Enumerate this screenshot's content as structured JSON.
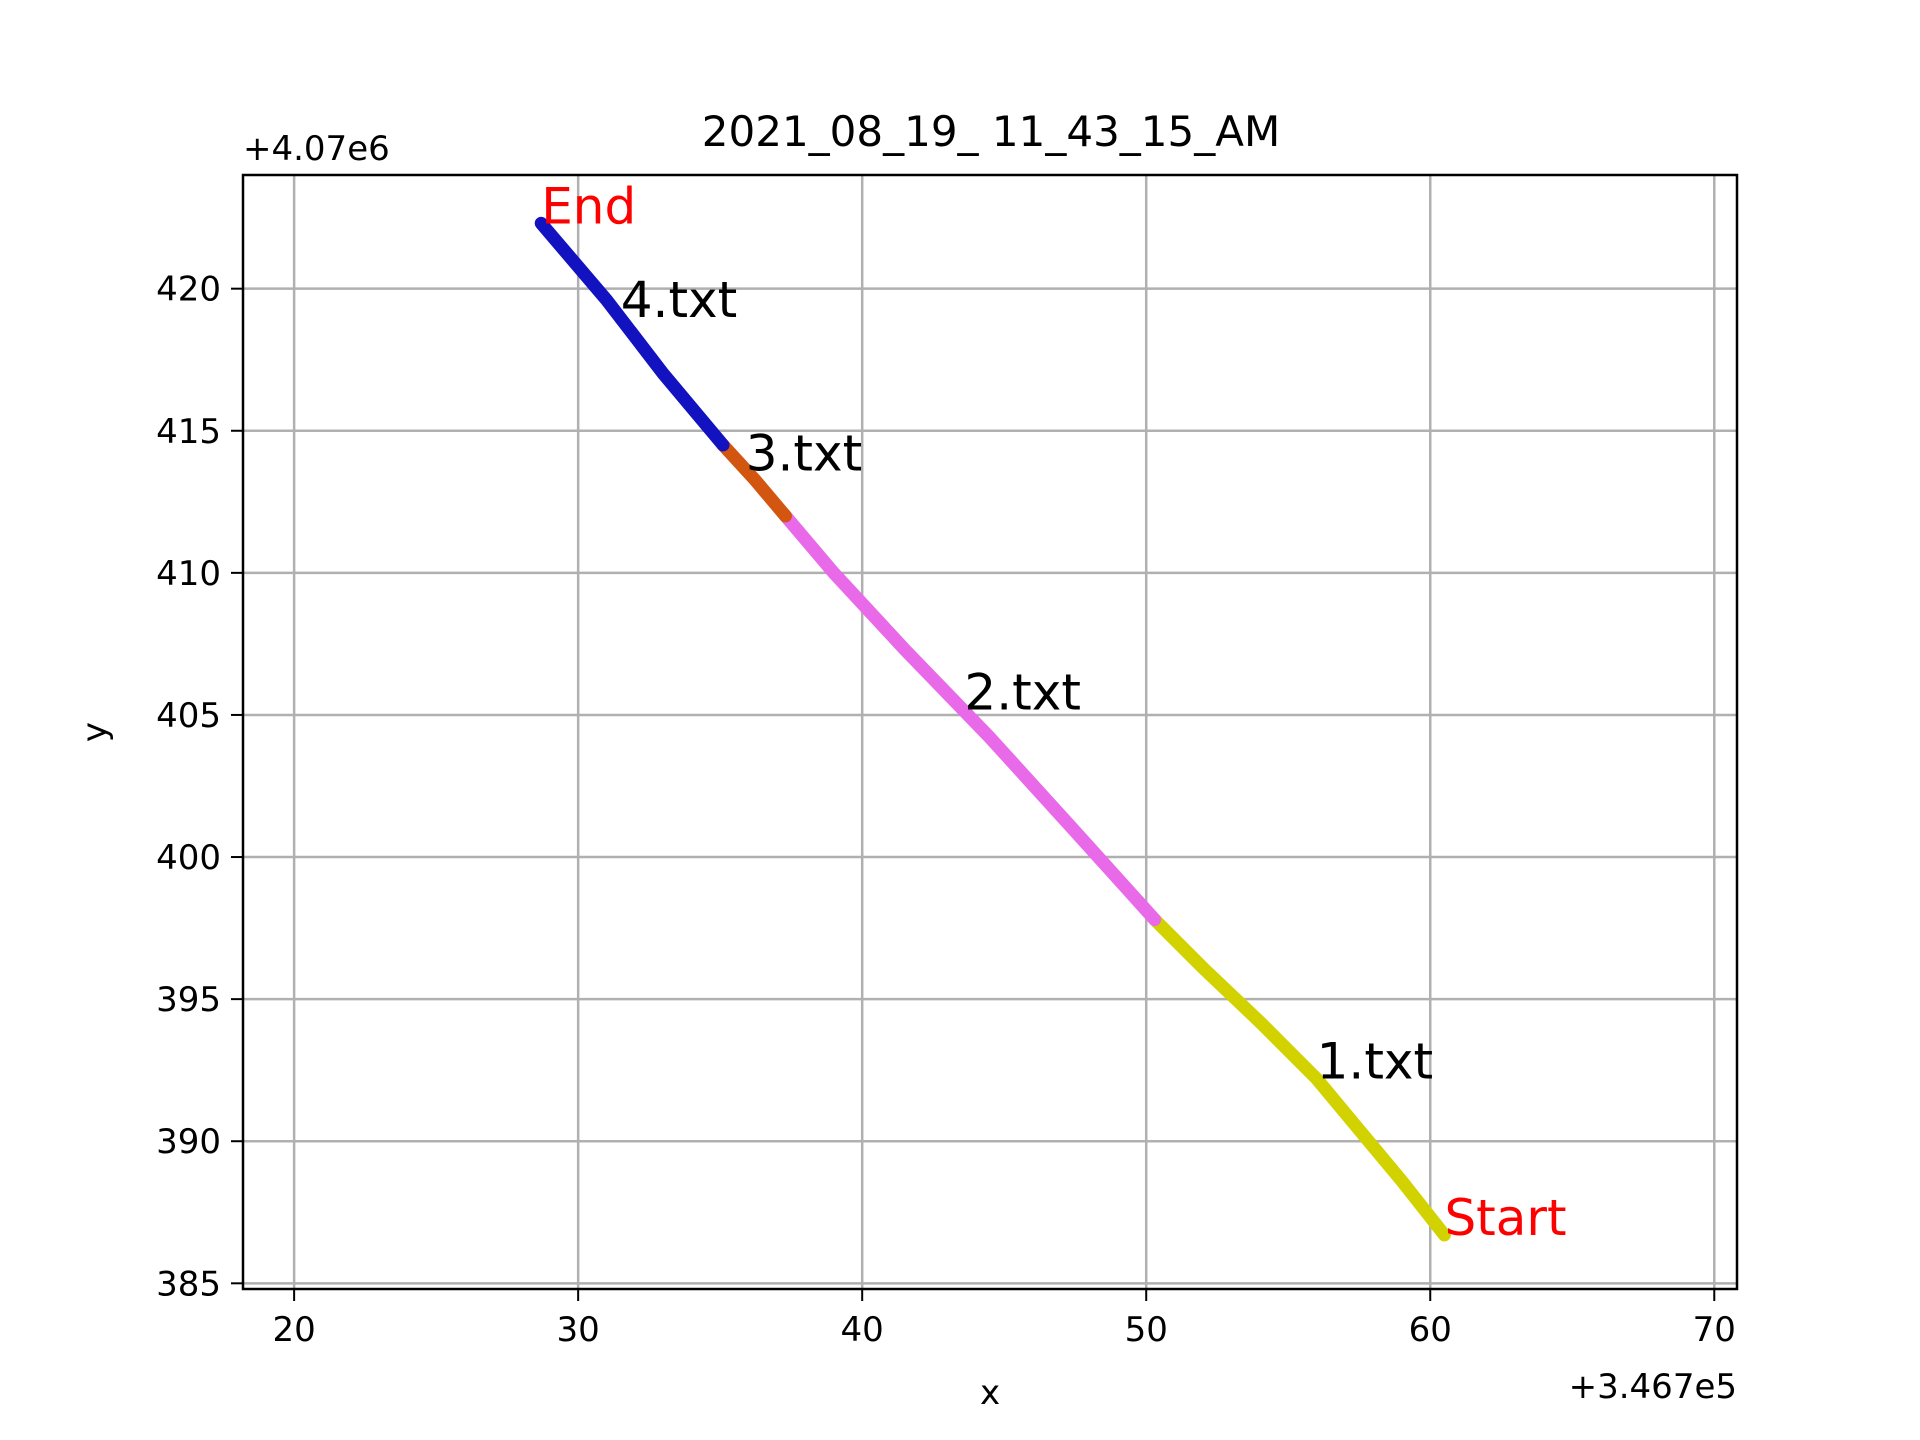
{
  "chart_data": {
    "type": "line",
    "title": "2021_08_19_ 11_43_15_AM",
    "xlabel": "x",
    "ylabel": "y",
    "x_offset_label": "+3.467e5",
    "y_offset_label": "+4.07e6",
    "xlim": [
      18.2,
      70.8
    ],
    "ylim": [
      384.8,
      424.0
    ],
    "x_ticks": [
      20,
      30,
      40,
      50,
      60,
      70
    ],
    "y_ticks": [
      385,
      390,
      395,
      400,
      405,
      410,
      415,
      420
    ],
    "grid": true,
    "series": [
      {
        "name": "1.txt",
        "color": "#d2d200",
        "x": [
          60.5,
          59.0,
          57.5,
          56.0,
          54.0,
          52.0,
          50.3
        ],
        "y": [
          386.7,
          388.6,
          390.4,
          392.2,
          394.2,
          396.1,
          397.8
        ]
      },
      {
        "name": "2.txt",
        "color": "#e86ae8",
        "x": [
          50.3,
          47.5,
          44.5,
          41.5,
          39.0,
          37.3
        ],
        "y": [
          397.8,
          400.9,
          404.2,
          407.3,
          410.0,
          412.0
        ]
      },
      {
        "name": "3.txt",
        "color": "#d2560f",
        "x": [
          37.3,
          36.2,
          35.1
        ],
        "y": [
          412.0,
          413.3,
          414.5
        ]
      },
      {
        "name": "4.txt",
        "color": "#1212c0",
        "x": [
          35.1,
          33.0,
          31.0,
          28.7
        ],
        "y": [
          414.5,
          417.0,
          419.6,
          422.3
        ]
      }
    ],
    "annotations": [
      {
        "text": "1.txt",
        "x": 56.0,
        "y": 392.2,
        "color": "#000000"
      },
      {
        "text": "2.txt",
        "x": 43.6,
        "y": 405.2,
        "color": "#000000"
      },
      {
        "text": "3.txt",
        "x": 35.9,
        "y": 413.6,
        "color": "#000000"
      },
      {
        "text": "4.txt",
        "x": 31.5,
        "y": 419.0,
        "color": "#000000"
      },
      {
        "text": "End",
        "x": 28.7,
        "y": 422.3,
        "color": "#ff0000"
      },
      {
        "text": "Start",
        "x": 60.5,
        "y": 386.7,
        "color": "#ff0000"
      }
    ]
  }
}
